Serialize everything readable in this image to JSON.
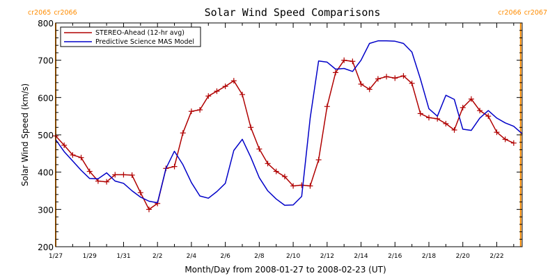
{
  "chart_data": {
    "type": "line",
    "title": "Solar Wind Speed Comparisons",
    "xlabel": "Month/Day from 2008-01-27 to 2008-02-23 (UT)",
    "ylabel": "Solar Wind Speed (km/s)",
    "xlim": [
      "2008-01-27",
      "2008-02-23T12:00"
    ],
    "ylim": [
      200,
      800
    ],
    "y_ticks": [
      200,
      300,
      400,
      500,
      600,
      700,
      800
    ],
    "x_ticks": [
      {
        "date": "2008-01-27",
        "label": "1/27"
      },
      {
        "date": "2008-01-29",
        "label": "1/29"
      },
      {
        "date": "2008-01-31",
        "label": "1/31"
      },
      {
        "date": "2008-02-02",
        "label": "2/2"
      },
      {
        "date": "2008-02-04",
        "label": "2/4"
      },
      {
        "date": "2008-02-06",
        "label": "2/6"
      },
      {
        "date": "2008-02-08",
        "label": "2/8"
      },
      {
        "date": "2008-02-10",
        "label": "2/10"
      },
      {
        "date": "2008-02-12",
        "label": "2/12"
      },
      {
        "date": "2008-02-14",
        "label": "2/14"
      },
      {
        "date": "2008-02-16",
        "label": "2/16"
      },
      {
        "date": "2008-02-18",
        "label": "2/18"
      },
      {
        "date": "2008-02-20",
        "label": "2/20"
      },
      {
        "date": "2008-02-22",
        "label": "2/22"
      }
    ],
    "legend_position": "top-left",
    "carrington_markers": [
      {
        "date": "2008-01-27",
        "label_left": "cr2065",
        "label_right": "cr2066",
        "align": "left"
      },
      {
        "date": "2008-02-23T09:50",
        "label_left": "cr2066",
        "label_right": "cr2067",
        "align": "right"
      }
    ],
    "marker_color": "#ff8c00",
    "series": [
      {
        "name": "STEREO-Ahead (12-hr avg)",
        "color": "#b00000",
        "marker": "plus",
        "points": [
          [
            "2008-01-27T00:00",
            497
          ],
          [
            "2008-01-27T12:00",
            472
          ],
          [
            "2008-01-28T00:00",
            446
          ],
          [
            "2008-01-28T12:00",
            439
          ],
          [
            "2008-01-29T00:00",
            402
          ],
          [
            "2008-01-29T12:00",
            376
          ],
          [
            "2008-01-30T00:00",
            374
          ],
          [
            "2008-01-30T12:00",
            393
          ],
          [
            "2008-01-31T00:00",
            393
          ],
          [
            "2008-01-31T12:00",
            392
          ],
          [
            "2008-02-01T00:00",
            345
          ],
          [
            "2008-02-01T12:00",
            300
          ],
          [
            "2008-02-02T00:00",
            316
          ],
          [
            "2008-02-02T12:00",
            410
          ],
          [
            "2008-02-03T00:00",
            415
          ],
          [
            "2008-02-03T12:00",
            505
          ],
          [
            "2008-02-04T00:00",
            563
          ],
          [
            "2008-02-04T12:00",
            567
          ],
          [
            "2008-02-05T00:00",
            604
          ],
          [
            "2008-02-05T12:00",
            617
          ],
          [
            "2008-02-06T00:00",
            630
          ],
          [
            "2008-02-06T12:00",
            645
          ],
          [
            "2008-02-07T00:00",
            608
          ],
          [
            "2008-02-07T12:00",
            520
          ],
          [
            "2008-02-08T00:00",
            462
          ],
          [
            "2008-02-08T12:00",
            423
          ],
          [
            "2008-02-09T00:00",
            402
          ],
          [
            "2008-02-09T12:00",
            388
          ],
          [
            "2008-02-10T00:00",
            363
          ],
          [
            "2008-02-10T12:00",
            365
          ],
          [
            "2008-02-11T00:00",
            363
          ],
          [
            "2008-02-11T12:00",
            433
          ],
          [
            "2008-02-12T00:00",
            576
          ],
          [
            "2008-02-12T12:00",
            667
          ],
          [
            "2008-02-13T00:00",
            700
          ],
          [
            "2008-02-13T12:00",
            697
          ],
          [
            "2008-02-14T00:00",
            636
          ],
          [
            "2008-02-14T12:00",
            622
          ],
          [
            "2008-02-15T00:00",
            650
          ],
          [
            "2008-02-15T12:00",
            656
          ],
          [
            "2008-02-16T00:00",
            652
          ],
          [
            "2008-02-16T12:00",
            658
          ],
          [
            "2008-02-17T00:00",
            638
          ],
          [
            "2008-02-17T12:00",
            557
          ],
          [
            "2008-02-18T00:00",
            546
          ],
          [
            "2008-02-18T12:00",
            543
          ],
          [
            "2008-02-19T00:00",
            530
          ],
          [
            "2008-02-19T12:00",
            513
          ],
          [
            "2008-02-20T00:00",
            573
          ],
          [
            "2008-02-20T12:00",
            596
          ],
          [
            "2008-02-21T00:00",
            565
          ],
          [
            "2008-02-21T12:00",
            550
          ],
          [
            "2008-02-22T00:00",
            507
          ],
          [
            "2008-02-22T12:00",
            488
          ],
          [
            "2008-02-23T00:00",
            478
          ]
        ]
      },
      {
        "name": "Predictive Science MAS Model",
        "color": "#0000c8",
        "marker": "none",
        "points": [
          [
            "2008-01-27T00:00",
            487
          ],
          [
            "2008-01-27T12:00",
            455
          ],
          [
            "2008-01-28T00:00",
            430
          ],
          [
            "2008-01-28T12:00",
            405
          ],
          [
            "2008-01-29T00:00",
            383
          ],
          [
            "2008-01-29T12:00",
            382
          ],
          [
            "2008-01-30T00:00",
            398
          ],
          [
            "2008-01-30T12:00",
            376
          ],
          [
            "2008-01-31T00:00",
            370
          ],
          [
            "2008-01-31T12:00",
            350
          ],
          [
            "2008-02-01T00:00",
            333
          ],
          [
            "2008-02-01T12:00",
            322
          ],
          [
            "2008-02-02T00:00",
            318
          ],
          [
            "2008-02-02T12:00",
            410
          ],
          [
            "2008-02-03T00:00",
            456
          ],
          [
            "2008-02-03T12:00",
            420
          ],
          [
            "2008-02-04T00:00",
            372
          ],
          [
            "2008-02-04T12:00",
            336
          ],
          [
            "2008-02-05T00:00",
            330
          ],
          [
            "2008-02-05T12:00",
            348
          ],
          [
            "2008-02-06T00:00",
            370
          ],
          [
            "2008-02-06T12:00",
            458
          ],
          [
            "2008-02-07T00:00",
            488
          ],
          [
            "2008-02-07T12:00",
            440
          ],
          [
            "2008-02-08T00:00",
            385
          ],
          [
            "2008-02-08T12:00",
            350
          ],
          [
            "2008-02-09T00:00",
            328
          ],
          [
            "2008-02-09T12:00",
            311
          ],
          [
            "2008-02-10T00:00",
            312
          ],
          [
            "2008-02-10T12:00",
            335
          ],
          [
            "2008-02-11T00:00",
            545
          ],
          [
            "2008-02-11T12:00",
            698
          ],
          [
            "2008-02-12T00:00",
            695
          ],
          [
            "2008-02-12T12:00",
            676
          ],
          [
            "2008-02-13T00:00",
            678
          ],
          [
            "2008-02-13T12:00",
            670
          ],
          [
            "2008-02-14T00:00",
            700
          ],
          [
            "2008-02-14T12:00",
            745
          ],
          [
            "2008-02-15T00:00",
            752
          ],
          [
            "2008-02-15T12:00",
            752
          ],
          [
            "2008-02-16T00:00",
            751
          ],
          [
            "2008-02-16T12:00",
            745
          ],
          [
            "2008-02-17T00:00",
            722
          ],
          [
            "2008-02-17T12:00",
            650
          ],
          [
            "2008-02-18T00:00",
            570
          ],
          [
            "2008-02-18T12:00",
            550
          ],
          [
            "2008-02-19T00:00",
            606
          ],
          [
            "2008-02-19T12:00",
            595
          ],
          [
            "2008-02-20T00:00",
            515
          ],
          [
            "2008-02-20T12:00",
            512
          ],
          [
            "2008-02-21T00:00",
            545
          ],
          [
            "2008-02-21T12:00",
            565
          ],
          [
            "2008-02-22T00:00",
            545
          ],
          [
            "2008-02-22T12:00",
            532
          ],
          [
            "2008-02-23T00:00",
            523
          ],
          [
            "2008-02-23T12:00",
            503
          ]
        ]
      }
    ]
  }
}
